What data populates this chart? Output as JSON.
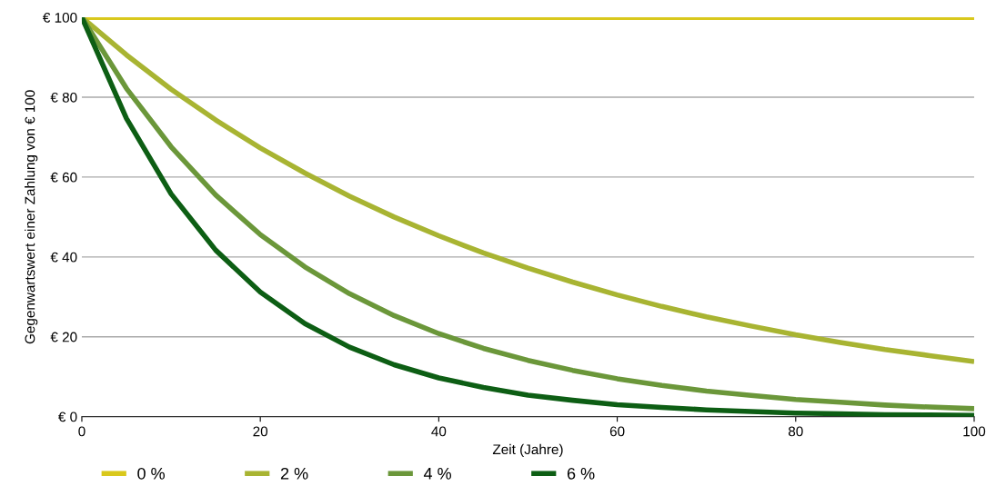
{
  "chart_data": {
    "type": "line",
    "xlabel": "Zeit (Jahre)",
    "ylabel": "Gegenwartswert einer Zahlung von € 100",
    "x": [
      0,
      5,
      10,
      15,
      20,
      25,
      30,
      35,
      40,
      45,
      50,
      55,
      60,
      65,
      70,
      75,
      80,
      85,
      90,
      95,
      100
    ],
    "series": [
      {
        "name": "0 %",
        "color": "#d9c81c",
        "values": [
          100,
          100,
          100,
          100,
          100,
          100,
          100,
          100,
          100,
          100,
          100,
          100,
          100,
          100,
          100,
          100,
          100,
          100,
          100,
          100,
          100
        ]
      },
      {
        "name": "2 %",
        "color": "#a8b432",
        "values": [
          100,
          90.6,
          82.0,
          74.3,
          67.3,
          61.0,
          55.2,
          50.0,
          45.3,
          41.0,
          37.2,
          33.7,
          30.5,
          27.6,
          25.0,
          22.7,
          20.5,
          18.6,
          16.8,
          15.3,
          13.8
        ]
      },
      {
        "name": "4 %",
        "color": "#6b973a",
        "values": [
          100,
          82.2,
          67.6,
          55.5,
          45.6,
          37.5,
          30.8,
          25.3,
          20.8,
          17.1,
          14.1,
          11.6,
          9.5,
          7.8,
          6.4,
          5.3,
          4.3,
          3.6,
          2.9,
          2.4,
          2.0
        ]
      },
      {
        "name": "6 %",
        "color": "#0d5e14",
        "values": [
          100,
          74.7,
          55.8,
          41.7,
          31.2,
          23.3,
          17.4,
          13.0,
          9.7,
          7.3,
          5.4,
          4.1,
          3.0,
          2.3,
          1.7,
          1.3,
          0.9,
          0.7,
          0.5,
          0.4,
          0.3
        ]
      }
    ],
    "xlim": [
      0,
      100
    ],
    "xticks": [
      0,
      20,
      40,
      60,
      80,
      100
    ],
    "ylim": [
      0,
      100
    ],
    "yticks": [
      {
        "value": 0,
        "label": "€ 0"
      },
      {
        "value": 20,
        "label": "€ 20"
      },
      {
        "value": 40,
        "label": "€ 40"
      },
      {
        "value": 60,
        "label": "€ 60"
      },
      {
        "value": 80,
        "label": "€ 80"
      },
      {
        "value": 100,
        "label": "€ 100"
      }
    ],
    "grid": "y",
    "legend": "bottom",
    "marker": "none",
    "line_style": "solid"
  }
}
